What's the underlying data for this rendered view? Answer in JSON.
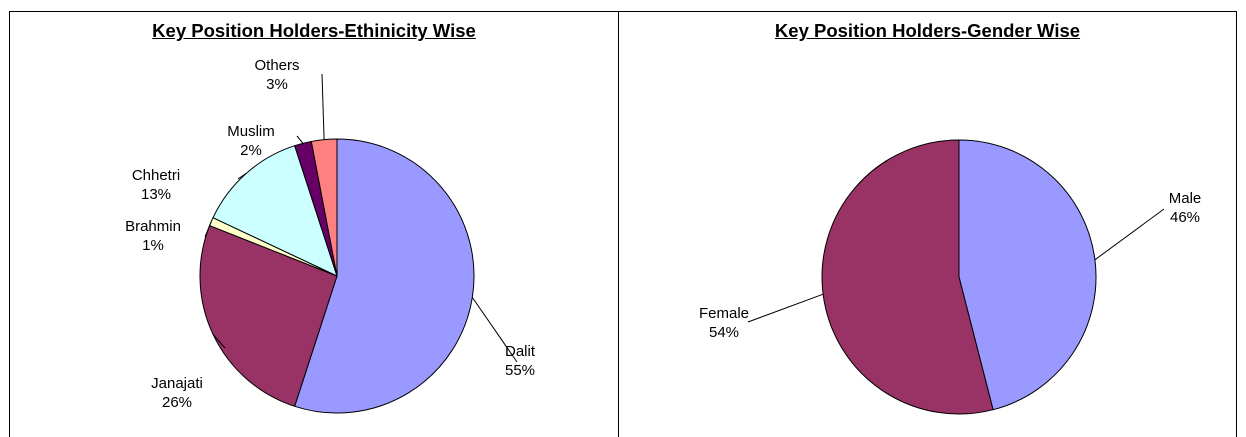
{
  "chart_data": [
    {
      "type": "pie",
      "title": "Key Position Holders-Ethinicity Wise",
      "slices": [
        {
          "label": "Dalit",
          "pct_label": "55%",
          "value": 55,
          "color": "#9999FF"
        },
        {
          "label": "Janajati",
          "pct_label": "26%",
          "value": 26,
          "color": "#993366"
        },
        {
          "label": "Brahmin",
          "pct_label": "1%",
          "value": 1,
          "color": "#FFFFCC"
        },
        {
          "label": "Chhetri",
          "pct_label": "13%",
          "value": 13,
          "color": "#CCFFFF"
        },
        {
          "label": "Muslim",
          "pct_label": "2%",
          "value": 2,
          "color": "#660066"
        },
        {
          "label": "Others",
          "pct_label": "3%",
          "value": 3,
          "color": "#FF8080"
        }
      ]
    },
    {
      "type": "pie",
      "title": "Key Position Holders-Gender Wise",
      "slices": [
        {
          "label": "Male",
          "pct_label": "46%",
          "value": 46,
          "color": "#9999FF"
        },
        {
          "label": "Female",
          "pct_label": "54%",
          "value": 54,
          "color": "#993366"
        }
      ]
    }
  ]
}
